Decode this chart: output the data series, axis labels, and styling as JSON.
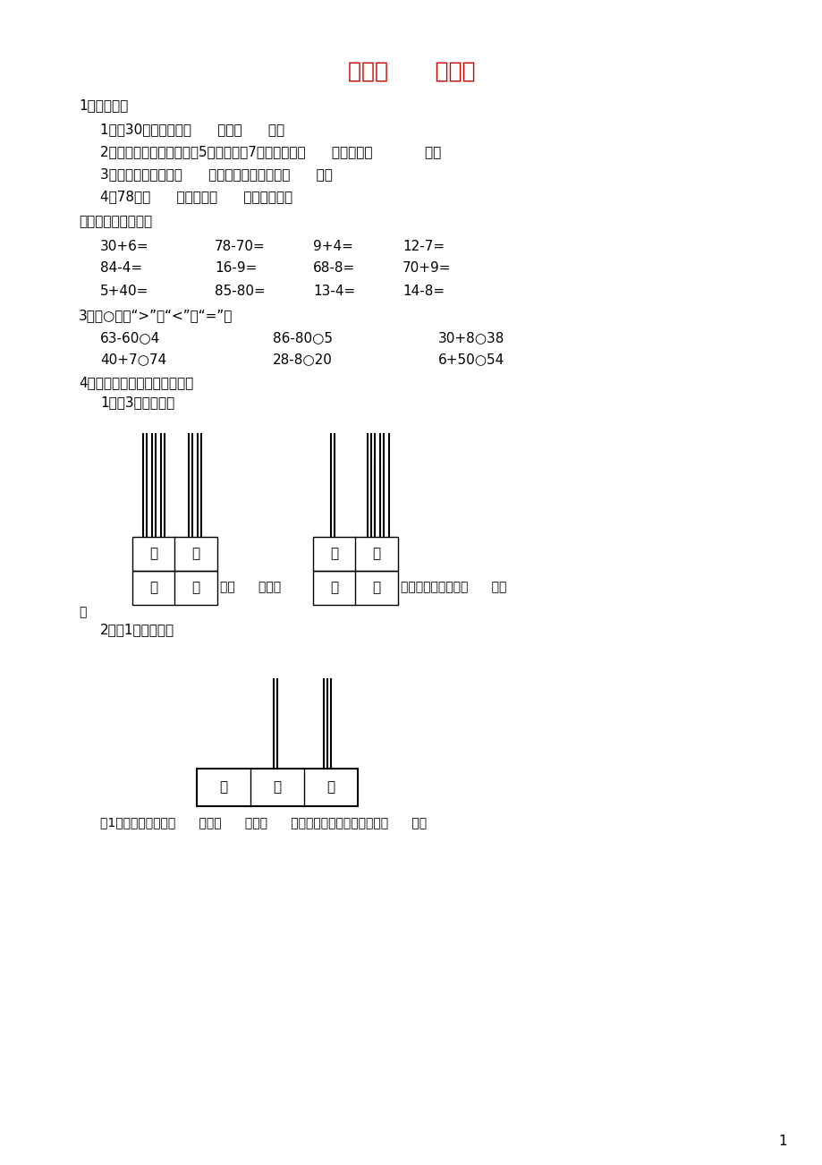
{
  "title": "摆一摆      想一想",
  "title_color": "#cc0000",
  "bg_color": "#ffffff",
  "page_number": "1",
  "s1_title": "1、填一填。",
  "s1_items": [
    "1、与30相邻的数是（      ）和（      ）。",
    "2、一个两位数，十位上是5，个位上是7，这个数是（      ），读作（            ）。",
    "3、最小的两位数是（      ），最大的两位数是（      ）。",
    "4、78由（      ）个十和（      ）个一组成。"
  ],
  "s2_title": "二、直接写出得数。",
  "s2_rows": [
    [
      "30+6=",
      "78-70=",
      "9+4=",
      "12-7="
    ],
    [
      "84-4=",
      "16-9=",
      "68-8=",
      "70+9="
    ],
    [
      "5+40=",
      "85-80=",
      "13-4=",
      "14-8="
    ]
  ],
  "s3_title": "3、在○里填“>”、“<”或“=”。",
  "s3_rows": [
    [
      "63-60○4",
      "86-80○5",
      "30+8○38"
    ],
    [
      "40+7○74",
      "28-8○20",
      "6+50○54"
    ]
  ],
  "s4_title": "4、摆一摆，画一画，填一填。",
  "s4_sub1": "1、用3棵珠子摆。",
  "s4_sub2": "2、用1颗珠子摆。",
  "s4_text1": "用1颗珠子摆的数有（      ）、（      ）、（      ），最大的数比最小的数多（      ）。"
}
